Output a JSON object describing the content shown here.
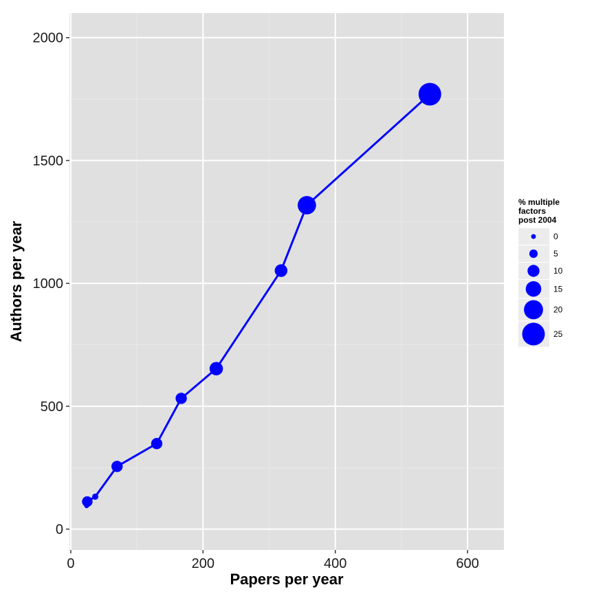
{
  "colors": {
    "panel": "#e0e0e0",
    "grid_major": "#ffffff",
    "grid_minor": "#eaeaea",
    "series": "#0000ff",
    "legend_key_bg": "#ececec"
  },
  "chart_data": {
    "type": "scatter",
    "connected": true,
    "xlabel": "Papers per year",
    "ylabel": "Authors per year",
    "xlim": [
      -2,
      655
    ],
    "ylim": [
      -85,
      2100
    ],
    "x_ticks": [
      0,
      200,
      400,
      600
    ],
    "y_ticks": [
      0,
      500,
      1000,
      1500,
      2000
    ],
    "grid": true,
    "series": [
      {
        "size_variable": "% multiple factors post 2004",
        "points": [
          {
            "x": 24,
            "y": 95,
            "size": 0
          },
          {
            "x": 25,
            "y": 112,
            "size": 8
          },
          {
            "x": 37,
            "y": 132,
            "size": 2
          },
          {
            "x": 70,
            "y": 255,
            "size": 9
          },
          {
            "x": 130,
            "y": 348,
            "size": 9
          },
          {
            "x": 167,
            "y": 532,
            "size": 9
          },
          {
            "x": 220,
            "y": 653,
            "size": 12
          },
          {
            "x": 318,
            "y": 1052,
            "size": 11
          },
          {
            "x": 357,
            "y": 1318,
            "size": 19
          },
          {
            "x": 543,
            "y": 1770,
            "size": 25
          }
        ]
      }
    ],
    "legend": {
      "title_lines": [
        "% multiple",
        "factors",
        "post 2004"
      ],
      "placement": "right",
      "items": [
        {
          "label": "0",
          "size": 0
        },
        {
          "label": "5",
          "size": 5
        },
        {
          "label": "10",
          "size": 10
        },
        {
          "label": "15",
          "size": 15
        },
        {
          "label": "20",
          "size": 20
        },
        {
          "label": "25",
          "size": 25
        }
      ]
    }
  }
}
